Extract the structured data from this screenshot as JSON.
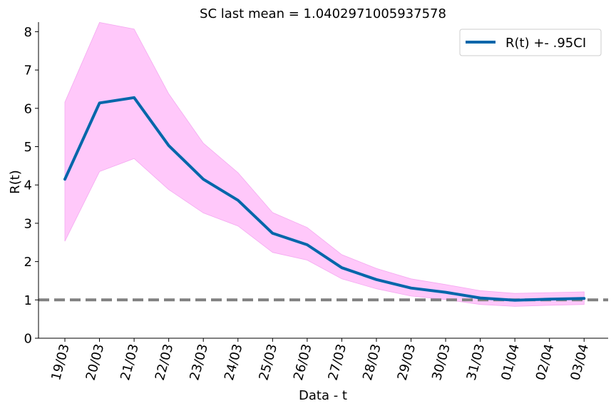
{
  "chart_data": {
    "type": "line",
    "title": "SC last mean = 1.0402971005937578",
    "xlabel": "Data - t",
    "ylabel": "R(t)",
    "categories": [
      "19/03",
      "20/03",
      "21/03",
      "22/03",
      "23/03",
      "24/03",
      "25/03",
      "26/03",
      "27/03",
      "28/03",
      "29/03",
      "30/03",
      "31/03",
      "01/04",
      "02/04",
      "03/04"
    ],
    "ylim": [
      0,
      8.25
    ],
    "yticks": [
      0,
      1,
      2,
      3,
      4,
      5,
      6,
      7,
      8
    ],
    "series": [
      {
        "name": "R(t) +- .95CI",
        "color": "#0066aa",
        "values": [
          4.15,
          6.14,
          6.28,
          5.03,
          4.15,
          3.6,
          2.74,
          2.44,
          1.84,
          1.53,
          1.31,
          1.2,
          1.05,
          0.99,
          1.02,
          1.04
        ],
        "lower": [
          2.53,
          4.35,
          4.69,
          3.88,
          3.27,
          2.93,
          2.24,
          2.04,
          1.55,
          1.29,
          1.1,
          1.01,
          0.88,
          0.83,
          0.86,
          0.88
        ],
        "upper": [
          6.16,
          8.24,
          8.07,
          6.38,
          5.09,
          4.32,
          3.28,
          2.89,
          2.18,
          1.82,
          1.55,
          1.4,
          1.24,
          1.17,
          1.19,
          1.21
        ]
      }
    ],
    "ci_fill_color": "#ffc8fa",
    "reference_line": {
      "y": 1,
      "color": "#808080",
      "style": "dashed"
    },
    "legend": {
      "position": "top-right",
      "label": "R(t) +- .95CI"
    },
    "grid": false
  }
}
